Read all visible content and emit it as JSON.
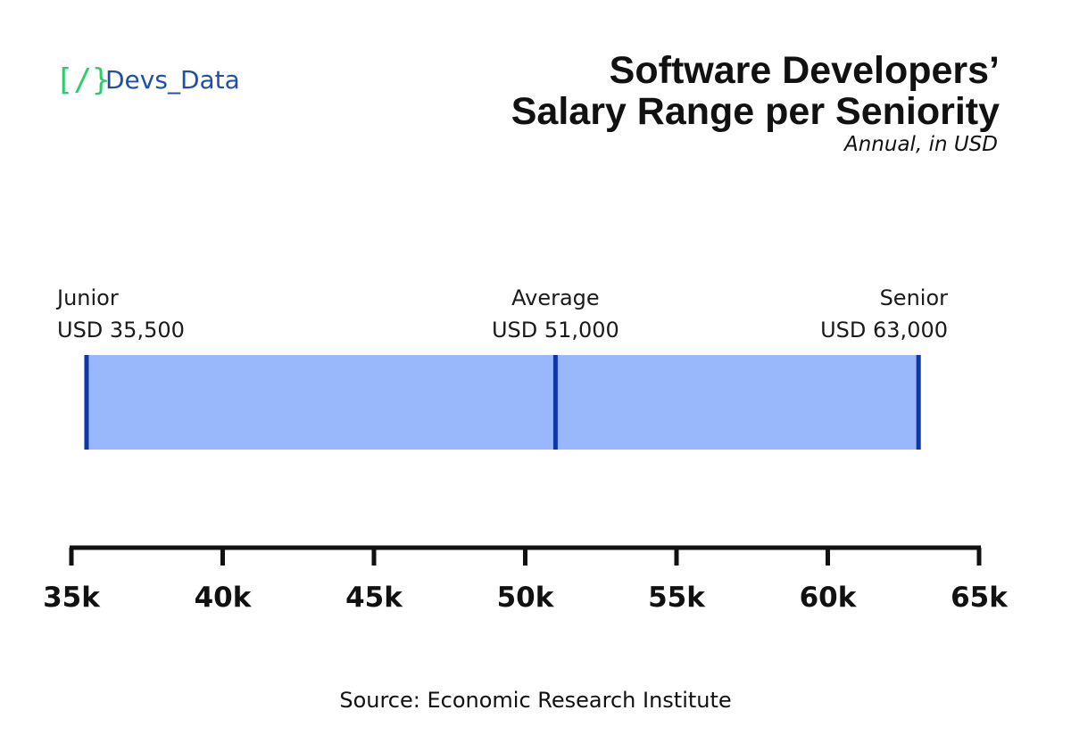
{
  "logo": {
    "mark": "[/}",
    "name": "Devs_Data"
  },
  "chart_data": {
    "type": "bar",
    "title_lines": [
      "Software Developers’",
      "Salary Range per Seniority"
    ],
    "subtitle": "Annual, in USD",
    "xlim": [
      35000,
      65000
    ],
    "tick_values": [
      35000,
      40000,
      45000,
      50000,
      55000,
      60000,
      65000
    ],
    "tick_labels": [
      "35k",
      "40k",
      "45k",
      "50k",
      "55k",
      "60k",
      "65k"
    ],
    "range": {
      "min": 35500,
      "max": 63000
    },
    "markers": [
      {
        "name": "Junior",
        "label": "USD 35,500",
        "value": 35500
      },
      {
        "name": "Average",
        "label": "USD 51,000",
        "value": 51000
      },
      {
        "name": "Senior",
        "label": "USD 63,000",
        "value": 63000
      }
    ],
    "colors": {
      "bar": "#99b8fb",
      "marker": "#0d36a8",
      "axis": "#111111"
    },
    "source": "Source: Economic Research Institute"
  }
}
